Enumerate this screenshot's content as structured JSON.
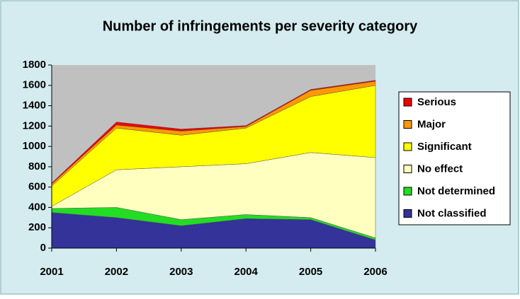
{
  "chart_data": {
    "type": "stacked_area",
    "title": "Number of infringements per severity category",
    "categories": [
      "2001",
      "2002",
      "2003",
      "2004",
      "2005",
      "2006"
    ],
    "series": [
      {
        "name": "Not classified",
        "color": "#333399",
        "values": [
          350,
          300,
          220,
          290,
          280,
          80
        ]
      },
      {
        "name": "Not determined",
        "color": "#22dd22",
        "values": [
          40,
          100,
          60,
          40,
          20,
          20
        ]
      },
      {
        "name": "No effect",
        "color": "#ffffc0",
        "values": [
          20,
          370,
          520,
          500,
          640,
          790
        ]
      },
      {
        "name": "Significant",
        "color": "#ffff00",
        "values": [
          200,
          410,
          310,
          350,
          550,
          710
        ]
      },
      {
        "name": "Major",
        "color": "#ff9900",
        "values": [
          20,
          30,
          40,
          15,
          60,
          40
        ]
      },
      {
        "name": "Serious",
        "color": "#ee0000",
        "values": [
          10,
          30,
          20,
          10,
          10,
          10
        ]
      }
    ],
    "ylim": [
      0,
      1800
    ],
    "yticks": [
      0,
      200,
      400,
      600,
      800,
      1000,
      1200,
      1400,
      1600,
      1800
    ],
    "grid": false,
    "legend": "right"
  }
}
